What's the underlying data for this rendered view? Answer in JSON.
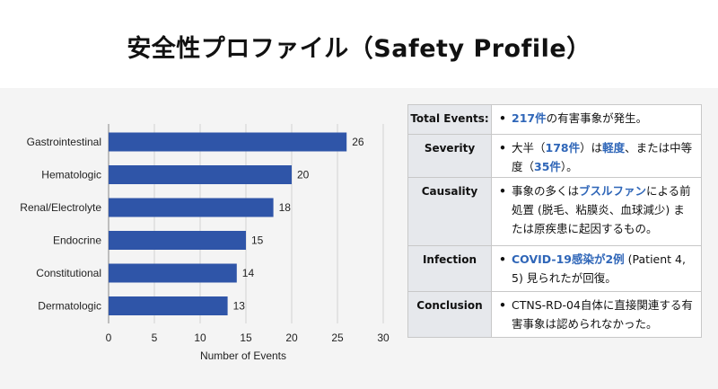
{
  "title": "安全性プロファイル（Safety Profile）",
  "colors": {
    "bar": "#2f55a8",
    "accent": "#2f66b8"
  },
  "chart_data": {
    "type": "bar",
    "orientation": "horizontal",
    "categories": [
      "Gastrointestinal",
      "Hematologic",
      "Renal/Electrolyte",
      "Endocrine",
      "Constitutional",
      "Dermatologic"
    ],
    "values": [
      26,
      20,
      18,
      15,
      14,
      13
    ],
    "xlabel": "Number of Events",
    "ylabel": "",
    "xlim": [
      0,
      30
    ],
    "xticks": [
      0,
      5,
      10,
      15,
      20,
      25,
      30
    ],
    "grid": true,
    "data_labels": true
  },
  "table": {
    "rows": [
      {
        "label": "Total Events:",
        "parts": [
          {
            "t": "217件",
            "hl": true
          },
          {
            "t": "の有害事象が発生。"
          }
        ]
      },
      {
        "label": "Severity",
        "parts": [
          {
            "t": "大半（"
          },
          {
            "t": "178件",
            "hl": true
          },
          {
            "t": "）は"
          },
          {
            "t": "軽度",
            "hl": true
          },
          {
            "t": "、または中等度（"
          },
          {
            "t": "35件",
            "hl": true
          },
          {
            "t": "）。"
          }
        ]
      },
      {
        "label": "Causality",
        "parts": [
          {
            "t": "事象の多くは"
          },
          {
            "t": "ブスルファン",
            "hl": true
          },
          {
            "t": "による前処置 (脱毛、粘膜炎、血球減少) または原疾患に起因するもの。"
          }
        ]
      },
      {
        "label": "Infection",
        "parts": [
          {
            "t": "COVID-19感染が2例",
            "hl": true
          },
          {
            "t": " (Patient 4, 5) 見られたが回復。"
          }
        ]
      },
      {
        "label": "Conclusion",
        "parts": [
          {
            "t": "CTNS-RD-04自体に直接関連する有害事象は認められなかった。"
          }
        ]
      }
    ]
  }
}
